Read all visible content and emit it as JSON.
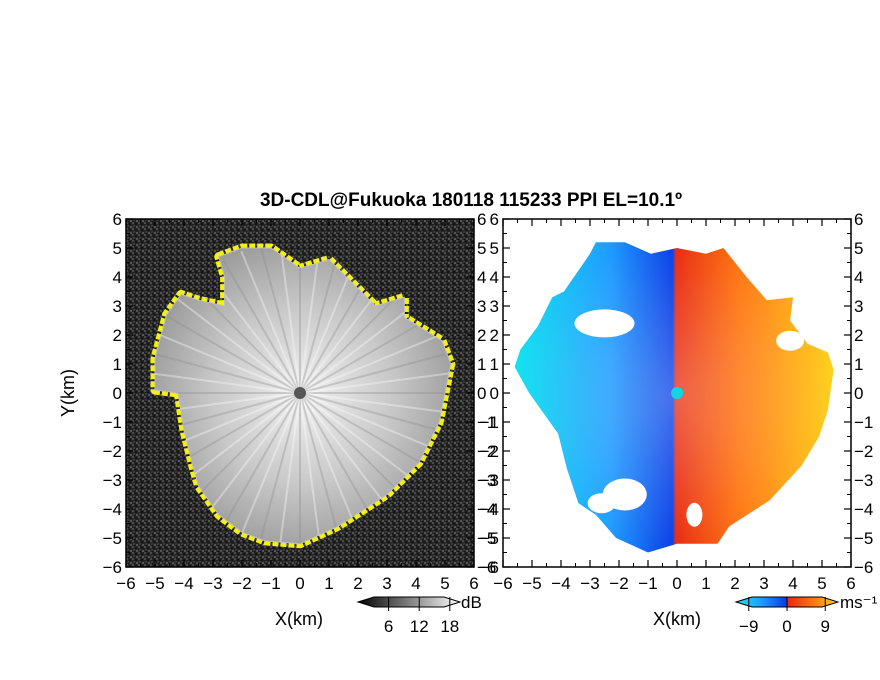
{
  "title": "3D-CDL@Fukuoka 180118 115233 PPI EL=10.1º",
  "colors": {
    "background": "#ffffff",
    "reflectivity_noise_dark": "#1c1c1c",
    "reflectivity_noise_light": "#4a4a4a",
    "edge_highlight": "#f2ef1a",
    "center_marker_left": "#555555",
    "center_marker_right": "#10d4e8"
  },
  "chart_data": [
    {
      "type": "heatmap",
      "name": "reflectivity-ppi",
      "xlabel": "X(km)",
      "ylabel": "Y(km)",
      "xlim": [
        -6,
        6
      ],
      "ylim": [
        -6,
        6
      ],
      "xticks": [
        "−6",
        "−5",
        "−4",
        "−3",
        "−2",
        "−1",
        "0",
        "1",
        "2",
        "3",
        "4",
        "5",
        "6"
      ],
      "yticks": [
        "−6",
        "−5",
        "−4",
        "−3",
        "−2",
        "−1",
        "0",
        "1",
        "2",
        "3",
        "4",
        "5",
        "6"
      ],
      "colorbar": {
        "unit": "dB",
        "ticks": [
          "6",
          "12",
          "18"
        ],
        "tick_values": [
          6,
          12,
          18
        ],
        "range": [
          0,
          20
        ]
      },
      "data_boundary_km": [
        [
          -2.8,
          4.7
        ],
        [
          -2.0,
          5.0
        ],
        [
          -1.0,
          5.0
        ],
        [
          0.0,
          4.3
        ],
        [
          1.0,
          4.6
        ],
        [
          1.8,
          3.8
        ],
        [
          2.6,
          3.0
        ],
        [
          3.6,
          3.3
        ],
        [
          3.6,
          2.6
        ],
        [
          4.9,
          1.8
        ],
        [
          5.2,
          1.0
        ],
        [
          4.8,
          -1.0
        ],
        [
          4.1,
          -2.4
        ],
        [
          3.0,
          -3.5
        ],
        [
          1.3,
          -4.6
        ],
        [
          0.0,
          -5.2
        ],
        [
          -1.2,
          -5.1
        ],
        [
          -2.0,
          -4.8
        ],
        [
          -2.8,
          -4.2
        ],
        [
          -3.5,
          -3.2
        ],
        [
          -3.7,
          -2.5
        ],
        [
          -4.0,
          -1.3
        ],
        [
          -4.2,
          0.0
        ],
        [
          -5.0,
          0.1
        ],
        [
          -5.0,
          1.2
        ],
        [
          -4.6,
          2.7
        ],
        [
          -4.1,
          3.4
        ],
        [
          -3.5,
          3.2
        ],
        [
          -2.6,
          3.0
        ],
        [
          -2.6,
          4.0
        ]
      ]
    },
    {
      "type": "heatmap",
      "name": "radial-velocity-ppi",
      "xlabel": "X(km)",
      "ylabel": "",
      "xlim": [
        -6,
        6
      ],
      "ylim": [
        -6,
        6
      ],
      "xticks": [
        "−6",
        "−5",
        "−4",
        "−3",
        "−2",
        "−1",
        "0",
        "1",
        "2",
        "3",
        "4",
        "5",
        "6"
      ],
      "yticks": [
        "−6",
        "−5",
        "−4",
        "−3",
        "−2",
        "−1",
        "0",
        "1",
        "2",
        "3",
        "4",
        "5",
        "6"
      ],
      "colorbar": {
        "unit": "ms⁻¹",
        "ticks": [
          "−9",
          "0",
          "9"
        ],
        "tick_values": [
          -9,
          0,
          9
        ],
        "range": [
          -12,
          12
        ]
      },
      "data_boundary_km": [
        [
          -3.0,
          4.8
        ],
        [
          -2.8,
          5.2
        ],
        [
          -1.8,
          5.2
        ],
        [
          -0.9,
          4.8
        ],
        [
          0.0,
          5.0
        ],
        [
          1.0,
          4.8
        ],
        [
          1.6,
          5.0
        ],
        [
          2.4,
          4.0
        ],
        [
          3.1,
          3.2
        ],
        [
          4.0,
          3.3
        ],
        [
          3.9,
          2.5
        ],
        [
          4.5,
          1.7
        ],
        [
          5.2,
          1.4
        ],
        [
          5.4,
          0.8
        ],
        [
          5.2,
          -0.6
        ],
        [
          4.9,
          -1.5
        ],
        [
          4.3,
          -2.5
        ],
        [
          3.2,
          -3.7
        ],
        [
          1.8,
          -4.6
        ],
        [
          1.4,
          -5.2
        ],
        [
          0.0,
          -5.2
        ],
        [
          -1.0,
          -5.5
        ],
        [
          -2.1,
          -5.0
        ],
        [
          -2.8,
          -4.2
        ],
        [
          -3.4,
          -3.8
        ],
        [
          -3.8,
          -2.6
        ],
        [
          -4.1,
          -1.4
        ],
        [
          -5.1,
          0.0
        ],
        [
          -5.6,
          0.9
        ],
        [
          -5.4,
          1.5
        ],
        [
          -4.8,
          2.3
        ],
        [
          -4.3,
          3.3
        ],
        [
          -3.9,
          3.5
        ]
      ]
    }
  ]
}
